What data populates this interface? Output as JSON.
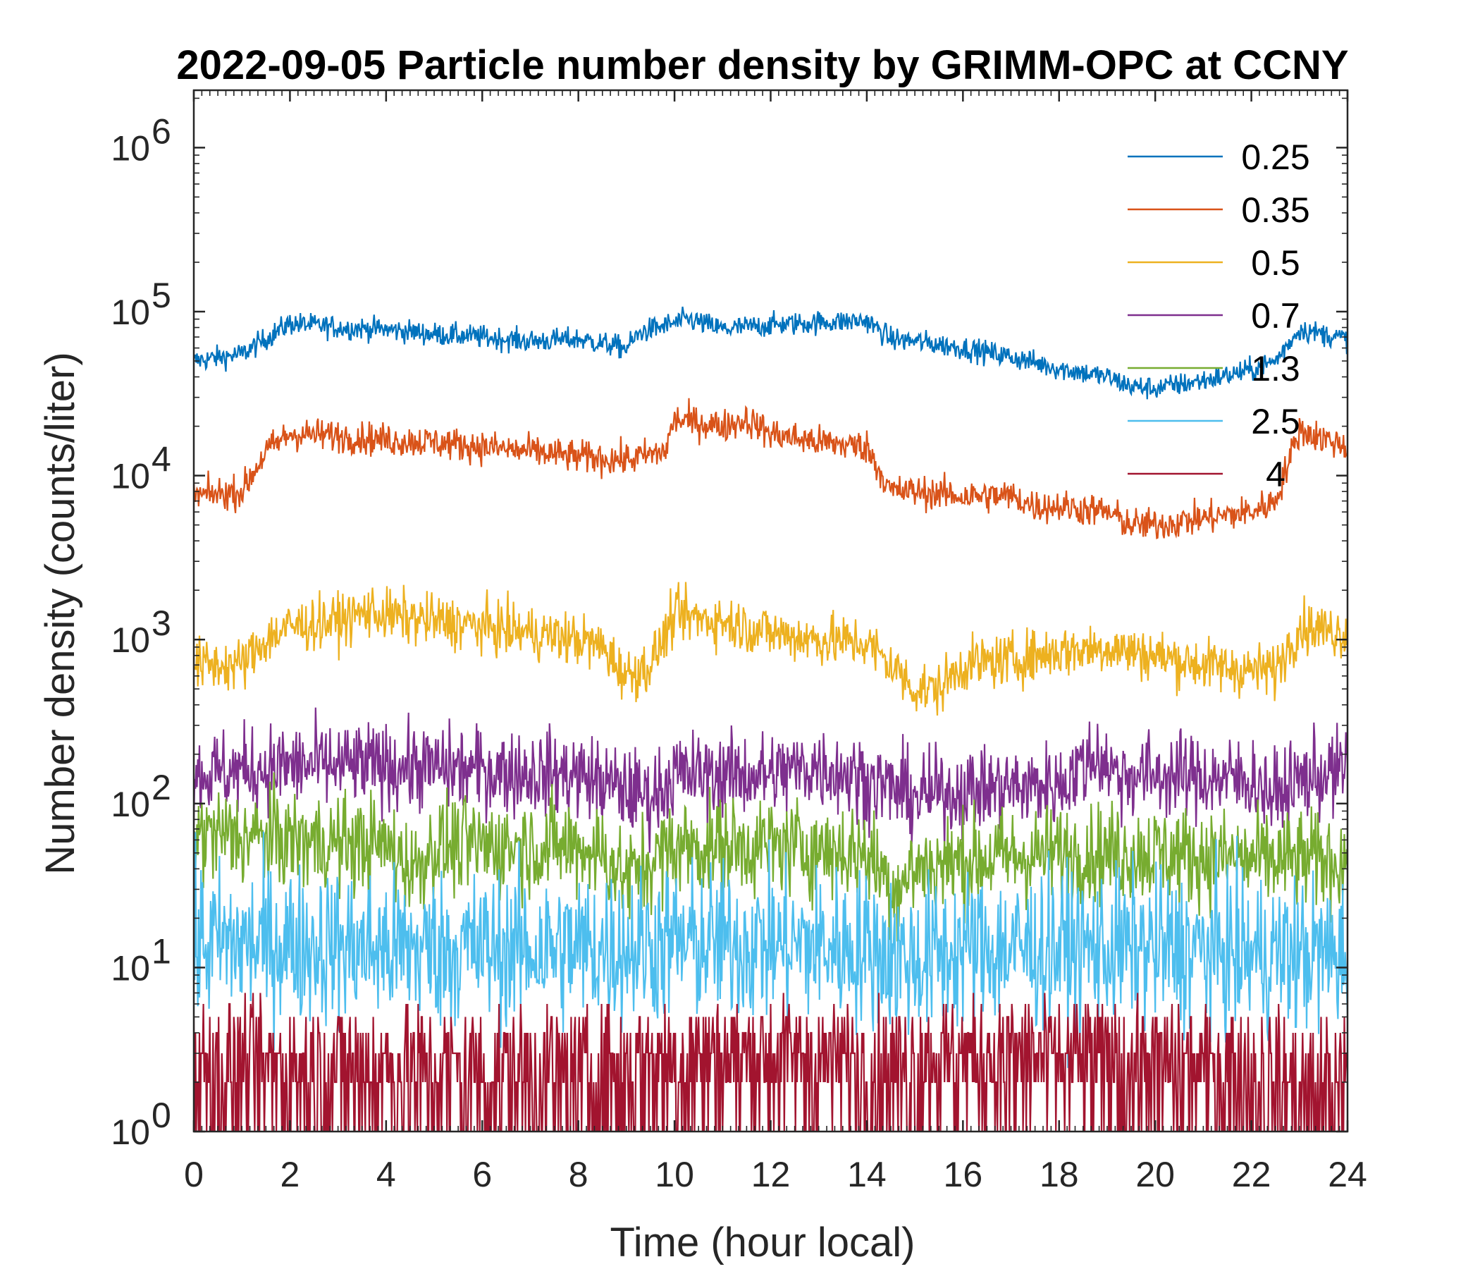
{
  "chart_data": {
    "type": "line",
    "title": "2022-09-05 Particle number density by GRIMM-OPC at CCNY",
    "xlabel": "Time (hour local)",
    "ylabel": "Number density (counts/liter)",
    "xlim": [
      0,
      24
    ],
    "ylim_log10": [
      0,
      6.35
    ],
    "yscale": "log",
    "xticks": [
      0,
      2,
      4,
      6,
      8,
      10,
      12,
      14,
      16,
      18,
      20,
      22,
      24
    ],
    "xtick_labels": [
      "0",
      "2",
      "4",
      "6",
      "8",
      "10",
      "12",
      "14",
      "16",
      "18",
      "20",
      "22",
      "24"
    ],
    "yticks_log10": [
      0,
      1,
      2,
      3,
      4,
      5,
      6
    ],
    "ytick_labels": [
      {
        "base": "10",
        "exp": "0"
      },
      {
        "base": "10",
        "exp": "1"
      },
      {
        "base": "10",
        "exp": "2"
      },
      {
        "base": "10",
        "exp": "3"
      },
      {
        "base": "10",
        "exp": "4"
      },
      {
        "base": "10",
        "exp": "5"
      },
      {
        "base": "10",
        "exp": "6"
      }
    ],
    "legend_position": "top-right",
    "series": [
      {
        "name": "0.25",
        "color": "#0072BD",
        "noise": 0.035,
        "x": [
          0,
          1,
          2,
          3,
          4,
          5,
          6,
          7,
          8,
          9,
          9.3,
          10,
          10.3,
          11,
          12,
          13,
          14,
          14.5,
          15,
          16,
          17,
          18,
          19,
          19.5,
          20,
          21,
          22,
          22.5,
          23,
          24
        ],
        "y": [
          50000,
          55000,
          85000,
          80000,
          78000,
          73000,
          70000,
          66000,
          68000,
          60000,
          75000,
          85000,
          90000,
          78000,
          83000,
          86000,
          88000,
          68000,
          66000,
          60000,
          53000,
          45000,
          40000,
          35000,
          34000,
          38000,
          44000,
          50000,
          78000,
          68000
        ]
      },
      {
        "name": "0.35",
        "color": "#D95319",
        "noise": 0.05,
        "x": [
          0,
          1,
          1.5,
          2,
          3,
          4,
          5,
          6,
          7,
          8,
          9,
          9.8,
          10,
          11,
          11.5,
          12,
          13,
          14,
          14.5,
          15,
          16,
          17,
          17.5,
          18,
          19,
          19.5,
          20,
          21,
          22,
          22.5,
          23,
          24
        ],
        "y": [
          7500,
          8000,
          14000,
          18000,
          17500,
          16500,
          16000,
          15000,
          14000,
          13000,
          12500,
          14000,
          22000,
          20000,
          22000,
          18000,
          16000,
          15000,
          8000,
          8000,
          7500,
          7500,
          6500,
          6500,
          6000,
          5000,
          5000,
          5500,
          6000,
          7000,
          19000,
          15000
        ]
      },
      {
        "name": "0.5",
        "color": "#EDB120",
        "noise": 0.08,
        "x": [
          0,
          1,
          1.5,
          2,
          3,
          3.7,
          4,
          5,
          6,
          7,
          8,
          8.5,
          9,
          9.5,
          10,
          11,
          12,
          13,
          14,
          14.5,
          15,
          15.5,
          16,
          17,
          18,
          19,
          20,
          21,
          22,
          22.5,
          23,
          24
        ],
        "y": [
          700,
          700,
          1000,
          1200,
          1300,
          1500,
          1400,
          1300,
          1200,
          1100,
          1000,
          900,
          600,
          700,
          1400,
          1300,
          1100,
          1000,
          950,
          700,
          500,
          500,
          700,
          750,
          850,
          900,
          800,
          700,
          650,
          650,
          1200,
          1100
        ]
      },
      {
        "name": "0.7",
        "color": "#7E2F8E",
        "noise": 0.13,
        "x": [
          0,
          2,
          4,
          6,
          8,
          9,
          9.5,
          10,
          12,
          13,
          14,
          15,
          16,
          18,
          18.8,
          19.2,
          20,
          22,
          22.5,
          23,
          24
        ],
        "y": [
          150,
          170,
          170,
          160,
          150,
          120,
          110,
          150,
          150,
          170,
          140,
          110,
          120,
          130,
          200,
          150,
          150,
          140,
          110,
          140,
          160
        ]
      },
      {
        "name": "1.3",
        "color": "#77AC30",
        "noise": 0.15,
        "x": [
          0,
          2,
          4,
          4.6,
          5,
          6,
          8,
          8.5,
          9,
          10,
          12,
          14,
          14.6,
          15,
          16,
          18,
          20,
          22,
          24
        ],
        "y": [
          65,
          60,
          55,
          40,
          55,
          55,
          55,
          50,
          35,
          55,
          55,
          50,
          30,
          40,
          45,
          50,
          50,
          45,
          45
        ]
      },
      {
        "name": "2.5",
        "color": "#4DBEEE",
        "noise": 0.24,
        "x": [
          0,
          2,
          4,
          6,
          8,
          10,
          12,
          14,
          15,
          16,
          18,
          20,
          22,
          24
        ],
        "y": [
          14,
          14,
          13,
          13,
          13,
          14,
          14,
          13,
          11,
          13,
          13,
          13,
          12,
          12
        ]
      },
      {
        "name": "4",
        "color": "#A2142F",
        "noise": 0.0,
        "discrete": true,
        "x": [
          0,
          4,
          8,
          10.5,
          12,
          14,
          15.5,
          16,
          18,
          20,
          22,
          23,
          24
        ],
        "y": [
          2.5,
          2.5,
          2.2,
          3.0,
          3.0,
          2.6,
          2.8,
          3.0,
          2.8,
          2.6,
          2.2,
          1.6,
          1.6
        ]
      }
    ]
  }
}
